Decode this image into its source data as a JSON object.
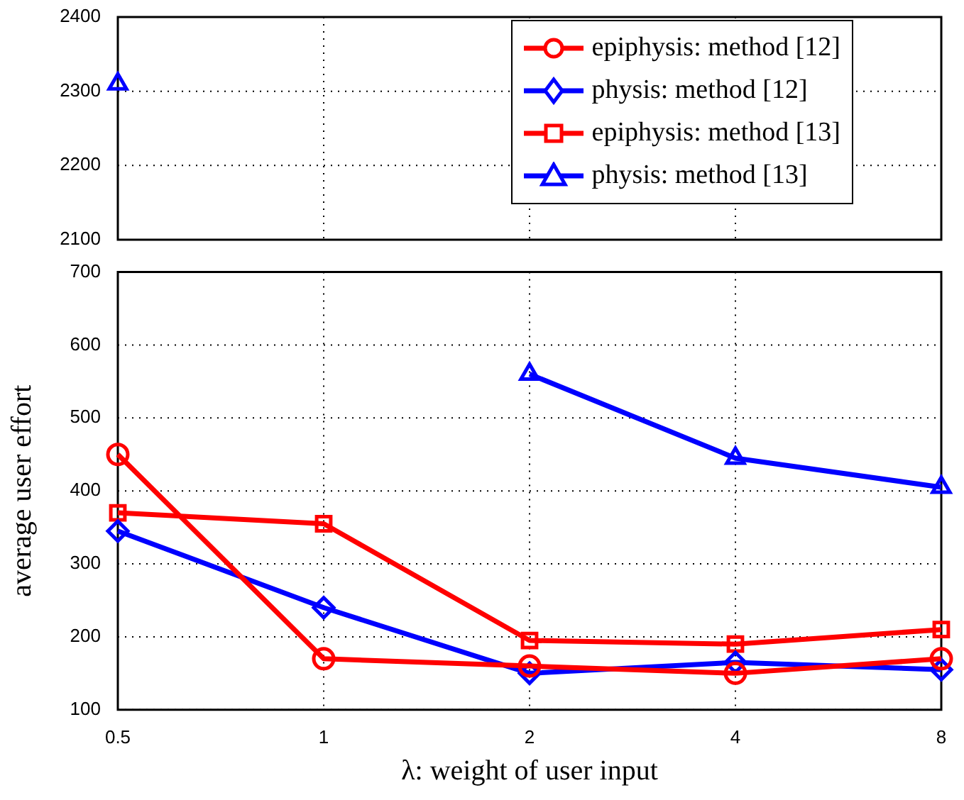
{
  "chart_data": [
    {
      "type": "line",
      "categories": [
        "0.5",
        "1",
        "2",
        "4",
        "8"
      ],
      "ylim": [
        2100,
        2400
      ],
      "yticks": [
        2100,
        2200,
        2300,
        2400
      ],
      "grid": true,
      "tick_labels": "y",
      "legend": "top right",
      "line_style": "solid",
      "series": [
        {
          "name": "epiphysis: method [12]",
          "color": "#ff0000",
          "marker": "circle",
          "values": [
            null,
            null,
            null,
            null,
            null
          ]
        },
        {
          "name": "physis: method [12]",
          "color": "#0000ff",
          "marker": "diamond",
          "values": [
            null,
            null,
            null,
            null,
            null
          ]
        },
        {
          "name": "epiphysis: method [13]",
          "color": "#ff0000",
          "marker": "square",
          "values": [
            null,
            null,
            null,
            null,
            null
          ]
        },
        {
          "name": "physis: method [13]",
          "color": "#0000ff",
          "marker": "triangle",
          "values": [
            2310,
            null,
            null,
            null,
            null
          ]
        }
      ]
    },
    {
      "type": "line",
      "categories": [
        "0.5",
        "1",
        "2",
        "4",
        "8"
      ],
      "ylim": [
        100,
        700
      ],
      "yticks": [
        100,
        200,
        300,
        400,
        500,
        600,
        700
      ],
      "grid": true,
      "line_style": "solid",
      "xlabel": "λ: weight of user input",
      "ylabel": "average user effort",
      "series": [
        {
          "color": "#ff0000",
          "marker": "circle",
          "values": [
            450,
            170,
            160,
            150,
            170
          ]
        },
        {
          "color": "#0000ff",
          "marker": "diamond",
          "values": [
            345,
            240,
            150,
            165,
            155
          ]
        },
        {
          "color": "#ff0000",
          "marker": "square",
          "values": [
            370,
            355,
            195,
            190,
            210
          ]
        },
        {
          "color": "#0000ff",
          "marker": "triangle",
          "values": [
            null,
            null,
            560,
            445,
            405
          ]
        }
      ]
    }
  ]
}
